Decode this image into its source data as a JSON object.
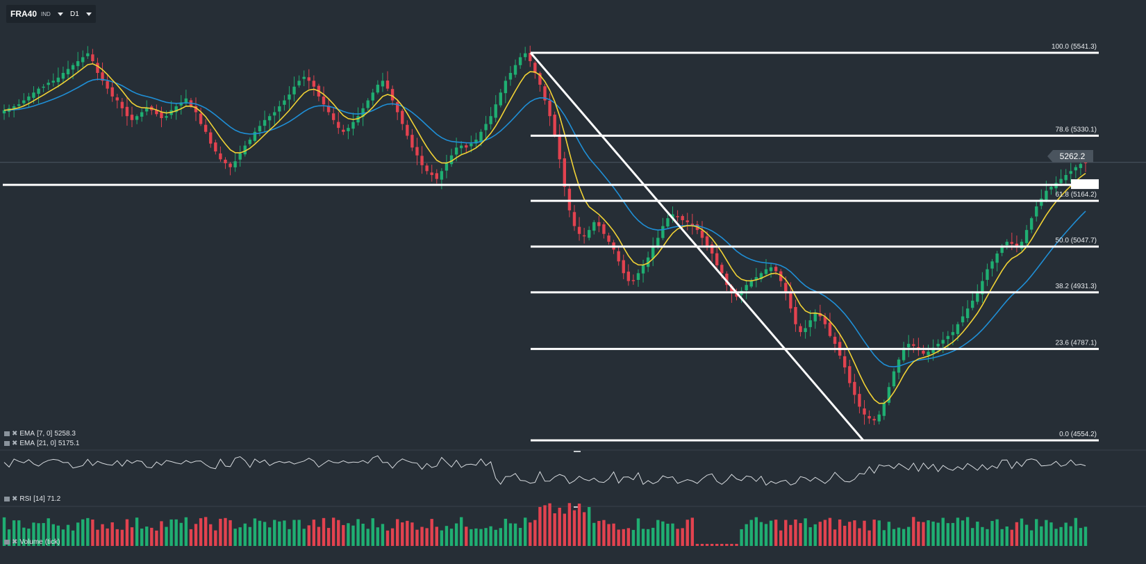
{
  "toolbar": {
    "symbol": "FRA40",
    "symbol_type": "IND",
    "timeframe": "D1"
  },
  "indicators": {
    "ema_fast": {
      "label": "EMA",
      "params": "[7, 0]",
      "value": "5258.3",
      "color": "#f2d335"
    },
    "ema_slow": {
      "label": "EMA",
      "params": "[21, 0]",
      "value": "5175.1",
      "color": "#1f8fd6"
    },
    "rsi": {
      "label": "RSI",
      "params": "[14]",
      "value": "71.2"
    },
    "volume": {
      "label": "Volume",
      "params": "(tick)"
    }
  },
  "last_price": "5262.2",
  "colors": {
    "background": "#262e36",
    "bull": "#1fae72",
    "bear": "#e2424f",
    "ema_fast": "#f2d335",
    "ema_slow": "#1f8fd6",
    "drawing": "#ffffff"
  },
  "chart_data": {
    "type": "candlestick",
    "symbol": "FRA40",
    "timeframe": "D1",
    "price_range": [
      4554.2,
      5620
    ],
    "fibonacci_retracement": {
      "high": 5541.3,
      "low": 4554.2,
      "levels": [
        {
          "ratio": "100.0",
          "price": 5541.3,
          "label": "100.0 (5541.3)"
        },
        {
          "ratio": "78.6",
          "price": 5330.1,
          "label": "78.6 (5330.1)"
        },
        {
          "ratio": "61.8",
          "price": 5164.2,
          "label": "61.8 (5164.2)"
        },
        {
          "ratio": "50.0",
          "price": 5047.7,
          "label": "50.0 (5047.7)"
        },
        {
          "ratio": "38.2",
          "price": 4931.3,
          "label": "38.2 (4931.3)"
        },
        {
          "ratio": "23.6",
          "price": 4787.1,
          "label": "23.6 (4787.1)"
        },
        {
          "ratio": "0.0",
          "price": 4554.2,
          "label": "0.0 (4554.2)"
        }
      ]
    },
    "support_line_price": 5205,
    "close_trend": [
      5395,
      5400,
      5405,
      5410,
      5420,
      5430,
      5440,
      5450,
      5455,
      5465,
      5470,
      5478,
      5490,
      5500,
      5510,
      5520,
      5530,
      5540,
      5520,
      5490,
      5470,
      5450,
      5430,
      5420,
      5400,
      5380,
      5370,
      5380,
      5390,
      5400,
      5395,
      5385,
      5375,
      5380,
      5395,
      5405,
      5415,
      5425,
      5405,
      5390,
      5360,
      5340,
      5310,
      5290,
      5270,
      5260,
      5250,
      5265,
      5285,
      5305,
      5320,
      5340,
      5355,
      5370,
      5380,
      5390,
      5405,
      5420,
      5435,
      5455,
      5470,
      5480,
      5470,
      5455,
      5430,
      5410,
      5390,
      5370,
      5350,
      5340,
      5350,
      5365,
      5380,
      5400,
      5420,
      5440,
      5460,
      5470,
      5450,
      5420,
      5390,
      5360,
      5330,
      5300,
      5280,
      5255,
      5240,
      5230,
      5220,
      5240,
      5260,
      5280,
      5300,
      5305,
      5300,
      5310,
      5320,
      5340,
      5360,
      5380,
      5410,
      5440,
      5470,
      5490,
      5510,
      5530,
      5540,
      5520,
      5490,
      5460,
      5420,
      5380,
      5330,
      5270,
      5200,
      5140,
      5100,
      5080,
      5075,
      5090,
      5110,
      5100,
      5080,
      5060,
      5040,
      5010,
      4980,
      4960,
      4960,
      4980,
      5000,
      5020,
      5050,
      5070,
      5100,
      5120,
      5130,
      5125,
      5115,
      5110,
      5100,
      5090,
      5070,
      5050,
      5030,
      5000,
      4980,
      4950,
      4930,
      4920,
      4935,
      4950,
      4960,
      4970,
      4980,
      4990,
      4995,
      4985,
      4960,
      4930,
      4890,
      4850,
      4830,
      4840,
      4860,
      4880,
      4870,
      4850,
      4820,
      4800,
      4770,
      4740,
      4700,
      4670,
      4640,
      4620,
      4610,
      4605,
      4620,
      4650,
      4690,
      4730,
      4760,
      4790,
      4800,
      4795,
      4785,
      4775,
      4780,
      4790,
      4800,
      4810,
      4820,
      4830,
      4850,
      4870,
      4890,
      4910,
      4930,
      4960,
      4990,
      5010,
      5030,
      5050,
      5060,
      5055,
      5045,
      5060,
      5090,
      5120,
      5150,
      5170,
      5190,
      5200,
      5210,
      5220,
      5230,
      5240,
      5250,
      5258,
      5262
    ],
    "rsi": {
      "value": 71.2
    },
    "volume_note": "Volume (tick) histogram, red = down bar, green = up bar"
  }
}
